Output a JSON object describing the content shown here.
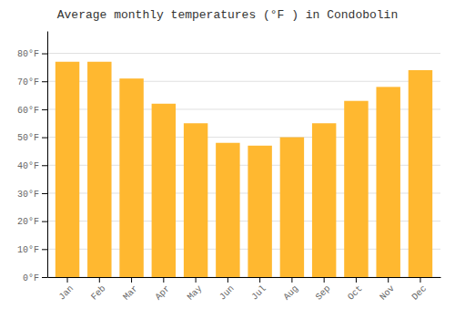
{
  "chart_data": {
    "type": "bar",
    "title": "Average monthly temperatures (°F ) in Condobolin",
    "categories": [
      "Jan",
      "Feb",
      "Mar",
      "Apr",
      "May",
      "Jun",
      "Jul",
      "Aug",
      "Sep",
      "Oct",
      "Nov",
      "Dec"
    ],
    "values": [
      77,
      77,
      71,
      62,
      55,
      48,
      47,
      50,
      55,
      63,
      68,
      74
    ],
    "color": "#FFB830",
    "ylim": [
      0,
      88
    ],
    "yticks": [
      {
        "value": 0,
        "label": "0°F"
      },
      {
        "value": 10,
        "label": "10°F"
      },
      {
        "value": 20,
        "label": "20°F"
      },
      {
        "value": 30,
        "label": "30°F"
      },
      {
        "value": 40,
        "label": "40°F"
      },
      {
        "value": 50,
        "label": "50°F"
      },
      {
        "value": 60,
        "label": "60°F"
      },
      {
        "value": 70,
        "label": "70°F"
      },
      {
        "value": 80,
        "label": "80°F"
      }
    ],
    "grid": true
  }
}
